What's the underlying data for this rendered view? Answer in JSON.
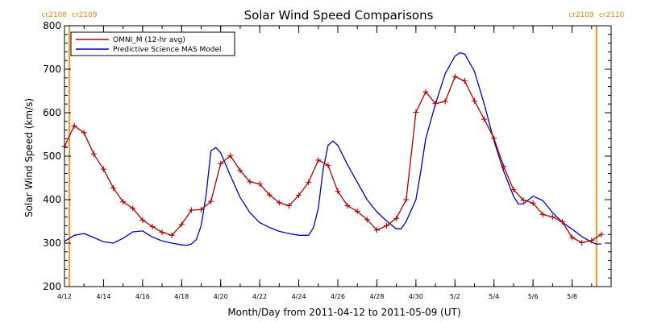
{
  "chart_data": {
    "type": "line",
    "title": "Solar Wind Speed Comparisons",
    "xlabel": "Month/Day from 2011-04-12 to 2011-05-09 (UT)",
    "ylabel": "Solar Wind Speed (km/s)",
    "xlim": [
      "2011-04-12",
      "2011-05-09"
    ],
    "ylim": [
      200,
      800
    ],
    "y_ticks": [
      200,
      300,
      400,
      500,
      600,
      700,
      800
    ],
    "x_ticks": [
      {
        "date": "2011-04-12",
        "label": "4/12"
      },
      {
        "date": "2011-04-14",
        "label": "4/14"
      },
      {
        "date": "2011-04-16",
        "label": "4/16"
      },
      {
        "date": "2011-04-18",
        "label": "4/18"
      },
      {
        "date": "2011-04-20",
        "label": "4/20"
      },
      {
        "date": "2011-04-22",
        "label": "4/22"
      },
      {
        "date": "2011-04-24",
        "label": "4/24"
      },
      {
        "date": "2011-04-26",
        "label": "4/26"
      },
      {
        "date": "2011-04-28",
        "label": "4/28"
      },
      {
        "date": "2011-04-30",
        "label": "4/30"
      },
      {
        "date": "2011-05-02",
        "label": "5/2"
      },
      {
        "date": "2011-05-04",
        "label": "5/4"
      },
      {
        "date": "2011-05-06",
        "label": "5/6"
      },
      {
        "date": "2011-05-08",
        "label": "5/8"
      }
    ],
    "legend": {
      "placement": "top-left"
    },
    "carrington_markers": [
      {
        "date": "2011-04-12T06:00",
        "label_left": "cr2108",
        "label_right": "cr2109"
      },
      {
        "date": "2011-05-09T06:00",
        "label_left": "cr2109",
        "label_right": "cr2110"
      }
    ],
    "series": [
      {
        "name": "OMNI_M (12-hr avg)",
        "color": "#b00000",
        "markers": "plus",
        "points": [
          [
            "2011-04-12T00:00",
            522
          ],
          [
            "2011-04-12T12:00",
            570
          ],
          [
            "2011-04-13T00:00",
            554
          ],
          [
            "2011-04-13T12:00",
            505
          ],
          [
            "2011-04-14T00:00",
            470
          ],
          [
            "2011-04-14T12:00",
            427
          ],
          [
            "2011-04-15T00:00",
            395
          ],
          [
            "2011-04-15T12:00",
            380
          ],
          [
            "2011-04-16T00:00",
            353
          ],
          [
            "2011-04-16T12:00",
            338
          ],
          [
            "2011-04-17T00:00",
            325
          ],
          [
            "2011-04-17T12:00",
            318
          ],
          [
            "2011-04-18T00:00",
            343
          ],
          [
            "2011-04-18T12:00",
            376
          ],
          [
            "2011-04-19T00:00",
            377
          ],
          [
            "2011-04-19T12:00",
            396
          ],
          [
            "2011-04-20T00:00",
            483
          ],
          [
            "2011-04-20T12:00",
            501
          ],
          [
            "2011-04-21T00:00",
            467
          ],
          [
            "2011-04-21T12:00",
            441
          ],
          [
            "2011-04-22T00:00",
            436
          ],
          [
            "2011-04-22T12:00",
            411
          ],
          [
            "2011-04-23T00:00",
            393
          ],
          [
            "2011-04-23T12:00",
            386
          ],
          [
            "2011-04-24T00:00",
            410
          ],
          [
            "2011-04-24T12:00",
            440
          ],
          [
            "2011-04-25T00:00",
            491
          ],
          [
            "2011-04-25T12:00",
            479
          ],
          [
            "2011-04-26T00:00",
            419
          ],
          [
            "2011-04-26T12:00",
            386
          ],
          [
            "2011-04-27T00:00",
            373
          ],
          [
            "2011-04-27T12:00",
            354
          ],
          [
            "2011-04-28T00:00",
            330
          ],
          [
            "2011-04-28T12:00",
            340
          ],
          [
            "2011-04-29T00:00",
            357
          ],
          [
            "2011-04-29T12:00",
            400
          ],
          [
            "2011-04-30T00:00",
            601
          ],
          [
            "2011-04-30T12:00",
            648
          ],
          [
            "2011-05-01T00:00",
            621
          ],
          [
            "2011-05-01T12:00",
            626
          ],
          [
            "2011-05-02T00:00",
            683
          ],
          [
            "2011-05-02T12:00",
            673
          ],
          [
            "2011-05-03T00:00",
            627
          ],
          [
            "2011-05-03T12:00",
            585
          ],
          [
            "2011-05-04T00:00",
            541
          ],
          [
            "2011-05-04T12:00",
            476
          ],
          [
            "2011-05-05T00:00",
            423
          ],
          [
            "2011-05-05T12:00",
            399
          ],
          [
            "2011-05-06T00:00",
            392
          ],
          [
            "2011-05-06T12:00",
            366
          ],
          [
            "2011-05-07T00:00",
            360
          ],
          [
            "2011-05-07T12:00",
            349
          ],
          [
            "2011-05-08T00:00",
            313
          ],
          [
            "2011-05-08T12:00",
            301
          ],
          [
            "2011-05-09T00:00",
            306
          ],
          [
            "2011-05-09T12:00",
            320
          ]
        ]
      },
      {
        "name": "Predictive Science MAS Model",
        "color": "#0000c0",
        "markers": "none",
        "points": [
          [
            "2011-04-12T00:00",
            304
          ],
          [
            "2011-04-12T12:00",
            318
          ],
          [
            "2011-04-13T00:00",
            322
          ],
          [
            "2011-04-13T12:00",
            313
          ],
          [
            "2011-04-14T00:00",
            303
          ],
          [
            "2011-04-14T12:00",
            300
          ],
          [
            "2011-04-15T00:00",
            311
          ],
          [
            "2011-04-15T12:00",
            326
          ],
          [
            "2011-04-16T00:00",
            328
          ],
          [
            "2011-04-16T12:00",
            314
          ],
          [
            "2011-04-17T00:00",
            305
          ],
          [
            "2011-04-17T12:00",
            300
          ],
          [
            "2011-04-18T00:00",
            296
          ],
          [
            "2011-04-18T06:00",
            295
          ],
          [
            "2011-04-18T12:00",
            298
          ],
          [
            "2011-04-18T18:00",
            308
          ],
          [
            "2011-04-19T00:00",
            340
          ],
          [
            "2011-04-19T06:00",
            410
          ],
          [
            "2011-04-19T12:00",
            512
          ],
          [
            "2011-04-19T18:00",
            520
          ],
          [
            "2011-04-20T00:00",
            508
          ],
          [
            "2011-04-20T12:00",
            455
          ],
          [
            "2011-04-21T00:00",
            405
          ],
          [
            "2011-04-21T12:00",
            370
          ],
          [
            "2011-04-22T00:00",
            347
          ],
          [
            "2011-04-22T12:00",
            336
          ],
          [
            "2011-04-23T00:00",
            327
          ],
          [
            "2011-04-23T12:00",
            322
          ],
          [
            "2011-04-24T00:00",
            318
          ],
          [
            "2011-04-24T12:00",
            318
          ],
          [
            "2011-04-24T18:00",
            335
          ],
          [
            "2011-04-25T00:00",
            380
          ],
          [
            "2011-04-25T06:00",
            470
          ],
          [
            "2011-04-25T12:00",
            525
          ],
          [
            "2011-04-25T18:00",
            535
          ],
          [
            "2011-04-26T00:00",
            525
          ],
          [
            "2011-04-26T12:00",
            480
          ],
          [
            "2011-04-27T00:00",
            440
          ],
          [
            "2011-04-27T12:00",
            400
          ],
          [
            "2011-04-28T00:00",
            372
          ],
          [
            "2011-04-28T12:00",
            351
          ],
          [
            "2011-04-29T00:00",
            333
          ],
          [
            "2011-04-29T06:00",
            333
          ],
          [
            "2011-04-29T12:00",
            350
          ],
          [
            "2011-04-30T00:00",
            400
          ],
          [
            "2011-04-30T06:00",
            465
          ],
          [
            "2011-04-30T12:00",
            540
          ],
          [
            "2011-05-01T00:00",
            620
          ],
          [
            "2011-05-01T12:00",
            690
          ],
          [
            "2011-05-02T00:00",
            730
          ],
          [
            "2011-05-02T06:00",
            738
          ],
          [
            "2011-05-02T12:00",
            735
          ],
          [
            "2011-05-03T00:00",
            695
          ],
          [
            "2011-05-03T12:00",
            620
          ],
          [
            "2011-05-04T00:00",
            535
          ],
          [
            "2011-05-04T12:00",
            465
          ],
          [
            "2011-05-05T00:00",
            408
          ],
          [
            "2011-05-05T06:00",
            390
          ],
          [
            "2011-05-05T12:00",
            390
          ],
          [
            "2011-05-06T00:00",
            408
          ],
          [
            "2011-05-06T12:00",
            398
          ],
          [
            "2011-05-07T00:00",
            370
          ],
          [
            "2011-05-07T12:00",
            348
          ],
          [
            "2011-05-08T00:00",
            332
          ],
          [
            "2011-05-08T12:00",
            315
          ],
          [
            "2011-05-09T00:00",
            302
          ],
          [
            "2011-05-09T06:00",
            298
          ],
          [
            "2011-05-09T12:00",
            298
          ]
        ]
      }
    ]
  }
}
